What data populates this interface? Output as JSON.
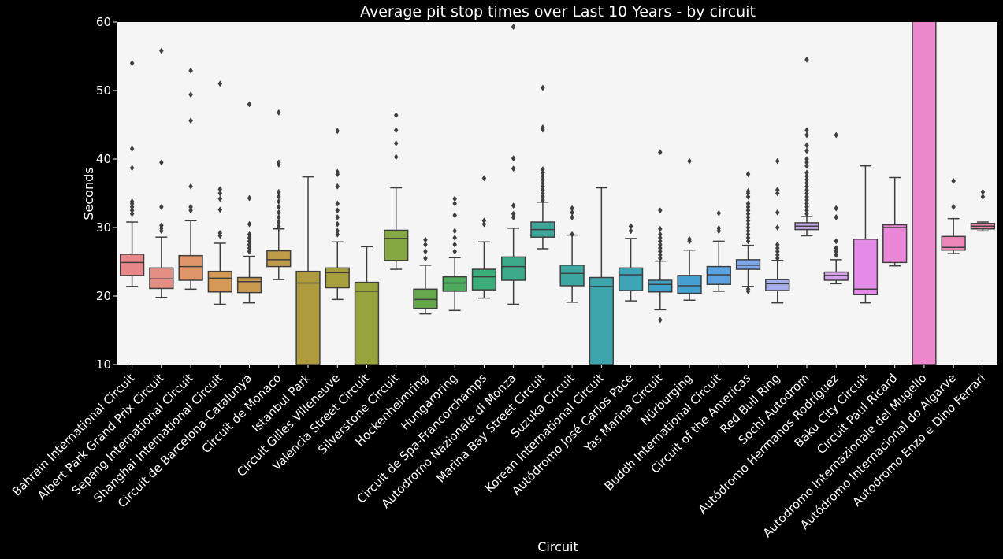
{
  "chart_data": {
    "type": "box",
    "title": "Average pit stop times over Last 10 Years - by circuit",
    "xlabel": "Circuit",
    "ylabel": "Seconds",
    "ylim": [
      10,
      60
    ],
    "yticks": [
      10,
      20,
      30,
      40,
      50,
      60
    ],
    "grid": false,
    "plot_background": "#f5f5f5",
    "figure_background": "#000000",
    "categories": [
      {
        "name": "Bahrain International Circuit",
        "color": "#e8878a",
        "whisker_low": 21.4,
        "q1": 23.0,
        "median": 24.9,
        "q3": 26.1,
        "whisker_high": 30.8,
        "outliers": [
          32.0,
          32.5,
          33.0,
          33.5,
          33.8,
          38.7,
          41.5,
          54.0
        ]
      },
      {
        "name": "Albert Park Grand Prix Circuit",
        "color": "#e48f83",
        "whisker_low": 19.8,
        "q1": 21.1,
        "median": 22.5,
        "q3": 24.1,
        "whisker_high": 28.6,
        "outliers": [
          29.5,
          29.9,
          30.3,
          33.0,
          39.5,
          55.8
        ]
      },
      {
        "name": "Sepang International Circuit",
        "color": "#e0946a",
        "whisker_low": 21.0,
        "q1": 22.3,
        "median": 24.3,
        "q3": 25.9,
        "whisker_high": 31.0,
        "outliers": [
          32.5,
          33.0,
          36.0,
          45.6,
          49.4,
          52.9
        ]
      },
      {
        "name": "Shanghai International Circuit",
        "color": "#d59a55",
        "whisker_low": 18.8,
        "q1": 20.6,
        "median": 22.6,
        "q3": 23.6,
        "whisker_high": 27.7,
        "outliers": [
          28.8,
          29.2,
          32.6,
          34.2,
          35.0,
          35.6,
          51.0
        ]
      },
      {
        "name": "Circuit de Barcelona-Catalunya",
        "color": "#c99a4e",
        "whisker_low": 19.0,
        "q1": 20.5,
        "median": 22.1,
        "q3": 22.7,
        "whisker_high": 25.8,
        "outliers": [
          26.5,
          27.0,
          27.5,
          28.0,
          28.5,
          29.0,
          30.5,
          34.3,
          48.0
        ]
      },
      {
        "name": "Circuit de Monaco",
        "color": "#bf9c47",
        "whisker_low": 22.4,
        "q1": 24.3,
        "median": 25.3,
        "q3": 26.6,
        "whisker_high": 29.8,
        "outliers": [
          30.2,
          30.8,
          31.5,
          32.2,
          33.0,
          33.8,
          34.5,
          35.2,
          39.2,
          39.5,
          46.8
        ]
      },
      {
        "name": "Istanbul Park",
        "color": "#ae9b3d",
        "whisker_low": 10.0,
        "q1": 10.0,
        "median": 21.9,
        "q3": 23.6,
        "whisker_high": 37.4,
        "outliers": []
      },
      {
        "name": "Circuit Gilles Villeneuve",
        "color": "#a79f3c",
        "whisker_low": 19.5,
        "q1": 21.2,
        "median": 23.4,
        "q3": 24.1,
        "whisker_high": 27.9,
        "outliers": [
          29.0,
          29.5,
          30.5,
          31.5,
          32.5,
          33.5,
          36.0,
          37.8,
          38.1,
          44.1
        ]
      },
      {
        "name": "Valencia Street Circuit",
        "color": "#97a43e",
        "whisker_low": 10.0,
        "q1": 10.0,
        "median": 20.7,
        "q3": 22.0,
        "whisker_high": 27.2,
        "outliers": []
      },
      {
        "name": "Silverstone Circuit",
        "color": "#86a843",
        "whisker_low": 23.9,
        "q1": 25.2,
        "median": 28.4,
        "q3": 29.6,
        "whisker_high": 35.8,
        "outliers": [
          40.3,
          42.3,
          44.2,
          46.4
        ]
      },
      {
        "name": "Hockenheimring",
        "color": "#65a84b",
        "whisker_low": 17.4,
        "q1": 18.2,
        "median": 19.5,
        "q3": 21.0,
        "whisker_high": 24.5,
        "outliers": [
          25.5,
          26.5,
          27.5,
          28.2
        ]
      },
      {
        "name": "Hungaroring",
        "color": "#4cab5c",
        "whisker_low": 17.9,
        "q1": 20.7,
        "median": 21.9,
        "q3": 22.8,
        "whisker_high": 25.6,
        "outliers": [
          26.5,
          27.5,
          28.5,
          29.5,
          31.8,
          33.5,
          34.2
        ]
      },
      {
        "name": "Circuit de Spa-Francorchamps",
        "color": "#3cac7a",
        "whisker_low": 19.7,
        "q1": 20.9,
        "median": 22.8,
        "q3": 23.9,
        "whisker_high": 27.9,
        "outliers": [
          30.5,
          31.0,
          37.2
        ]
      },
      {
        "name": "Autodromo Nazionale di Monza",
        "color": "#3aaa8a",
        "whisker_low": 18.8,
        "q1": 22.3,
        "median": 24.3,
        "q3": 25.7,
        "whisker_high": 29.9,
        "outliers": [
          31.5,
          32.0,
          33.2,
          38.6,
          40.1,
          59.3
        ]
      },
      {
        "name": "Marina Bay Street Circuit",
        "color": "#3ca798",
        "whisker_low": 26.9,
        "q1": 28.6,
        "median": 29.7,
        "q3": 30.8,
        "whisker_high": 33.7,
        "outliers": [
          34.0,
          34.5,
          35.0,
          35.5,
          36.0,
          36.5,
          37.0,
          37.5,
          38.0,
          38.5,
          44.3,
          44.6,
          50.4
        ]
      },
      {
        "name": "Suzuka Circuit",
        "color": "#3ca7a1",
        "whisker_low": 19.1,
        "q1": 21.5,
        "median": 23.3,
        "q3": 24.5,
        "whisker_high": 28.9,
        "outliers": [
          29.0,
          31.5,
          32.2,
          32.8
        ]
      },
      {
        "name": "Korean International Circuit",
        "color": "#3ea5ad",
        "whisker_low": 10.0,
        "q1": 10.0,
        "median": 21.4,
        "q3": 22.7,
        "whisker_high": 35.8,
        "outliers": []
      },
      {
        "name": "Autódromo José Carlos Pace",
        "color": "#3ea4b8",
        "whisker_low": 19.3,
        "q1": 20.8,
        "median": 23.1,
        "q3": 24.1,
        "whisker_high": 28.4,
        "outliers": [
          29.5,
          30.2
        ]
      },
      {
        "name": "Yas Marina Circuit",
        "color": "#3fa2c4",
        "whisker_low": 18.0,
        "q1": 20.6,
        "median": 21.7,
        "q3": 22.3,
        "whisker_high": 25.1,
        "outliers": [
          16.5,
          25.5,
          26.0,
          26.5,
          27.0,
          27.5,
          28.0,
          28.5,
          29.0,
          29.8,
          32.5,
          41.0
        ]
      },
      {
        "name": "Nürburging",
        "color": "#45a0d2",
        "whisker_low": 19.4,
        "q1": 20.4,
        "median": 21.5,
        "q3": 23.0,
        "whisker_high": 26.7,
        "outliers": [
          28.0,
          28.3,
          39.7
        ]
      },
      {
        "name": "Buddh International Circuit",
        "color": "#5aa2e0",
        "whisker_low": 20.7,
        "q1": 21.7,
        "median": 23.1,
        "q3": 24.3,
        "whisker_high": 28.0,
        "outliers": [
          29.5,
          29.9,
          32.1
        ]
      },
      {
        "name": "Circuit of the Americas",
        "color": "#7ea6e6",
        "whisker_low": 21.4,
        "q1": 23.9,
        "median": 24.5,
        "q3": 25.3,
        "whisker_high": 27.4,
        "outliers": [
          20.7,
          21.0,
          28.0,
          28.5,
          29.0,
          29.5,
          30.0,
          30.5,
          31.0,
          31.5,
          32.0,
          32.5,
          33.0,
          33.5,
          34.5,
          35.0,
          35.3,
          37.8
        ]
      },
      {
        "name": "Red Bull Ring",
        "color": "#a6aeea",
        "whisker_low": 19.0,
        "q1": 20.8,
        "median": 21.8,
        "q3": 22.4,
        "whisker_high": 25.2,
        "outliers": [
          25.5,
          26.0,
          26.5,
          27.0,
          27.5,
          30.0,
          32.2,
          35.0,
          35.5,
          39.7
        ]
      },
      {
        "name": "Sochi Autodrom",
        "color": "#c2a8ea",
        "whisker_low": 28.8,
        "q1": 29.7,
        "median": 30.2,
        "q3": 30.7,
        "whisker_high": 31.6,
        "outliers": [
          32.0,
          32.5,
          33.0,
          33.5,
          34.0,
          34.5,
          35.0,
          35.5,
          36.0,
          36.5,
          37.0,
          37.5,
          38.0,
          39.0,
          39.5,
          40.0,
          41.2,
          42.0,
          43.5,
          44.2,
          54.5
        ]
      },
      {
        "name": "Autódromo Hermanos Rodríguez",
        "color": "#d4a3ea",
        "whisker_low": 21.8,
        "q1": 22.3,
        "median": 23.0,
        "q3": 23.5,
        "whisker_high": 25.3,
        "outliers": [
          26.0,
          26.5,
          27.0,
          28.0,
          31.5,
          32.8,
          43.5
        ]
      },
      {
        "name": "Baku City Circuit",
        "color": "#e48ae8",
        "whisker_low": 19.0,
        "q1": 20.2,
        "median": 21.0,
        "q3": 28.3,
        "whisker_high": 39.0,
        "outliers": []
      },
      {
        "name": "Circuit Paul Ricard",
        "color": "#ea87d8",
        "whisker_low": 24.4,
        "q1": 24.9,
        "median": 30.0,
        "q3": 30.4,
        "whisker_high": 37.3,
        "outliers": []
      },
      {
        "name": "Autodromo Internazionale del Mugello",
        "color": "#eb88cc",
        "whisker_low": 10.0,
        "q1": 10.0,
        "median": 62.0,
        "q3": 65.0,
        "whisker_high": 65.0,
        "outliers": []
      },
      {
        "name": "Autódromo Internacional do Algarve",
        "color": "#ea86b8",
        "whisker_low": 26.2,
        "q1": 26.7,
        "median": 27.1,
        "q3": 28.7,
        "whisker_high": 31.3,
        "outliers": [
          33.0,
          36.8
        ]
      },
      {
        "name": "Autodromo Enzo e Dino Ferrari",
        "color": "#e885a4",
        "whisker_low": 29.5,
        "q1": 29.8,
        "median": 30.2,
        "q3": 30.6,
        "whisker_high": 30.8,
        "outliers": [
          34.5,
          35.2
        ]
      }
    ]
  }
}
